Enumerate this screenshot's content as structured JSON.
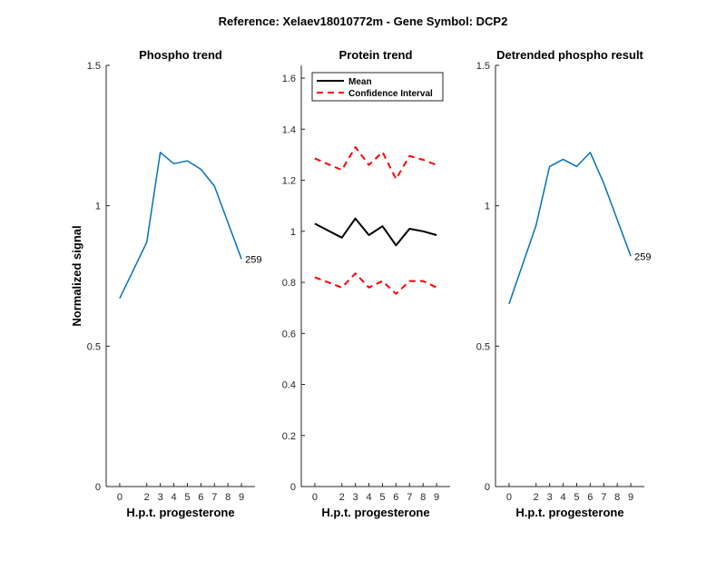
{
  "figure": {
    "suptitle": "Reference:  Xelaev18010772m - Gene Symbol:  DCP2"
  },
  "chart_data": [
    {
      "type": "line",
      "title": "Phospho trend",
      "xlabel": "H.p.t. progesterone",
      "ylabel": "Normalized signal",
      "ylim": [
        0,
        1.5
      ],
      "yticks": [
        0,
        0.5,
        1,
        1.5
      ],
      "ytick_labels": [
        "0",
        "0.5",
        "1",
        "1.5"
      ],
      "x": [
        0,
        2,
        3,
        4,
        5,
        6,
        7,
        8,
        9
      ],
      "xtick_labels": [
        "0",
        "2",
        "3",
        "4",
        "5",
        "6",
        "7",
        "8",
        "9"
      ],
      "series": [
        {
          "values": [
            0.67,
            0.87,
            1.19,
            1.15,
            1.16,
            1.13,
            1.07,
            0.94,
            0.81
          ],
          "color": "#0072BD",
          "end_label": "259"
        }
      ]
    },
    {
      "type": "line",
      "title": "Protein trend",
      "xlabel": "H.p.t. progesterone",
      "ylabel": "",
      "ylim": [
        0,
        1.65
      ],
      "yticks": [
        0,
        0.2,
        0.4,
        0.6,
        0.8,
        1,
        1.2,
        1.4,
        1.6
      ],
      "ytick_labels": [
        "0",
        "0.2",
        "0.4",
        "0.6",
        "0.8",
        "1",
        "1.2",
        "1.4",
        "1.6"
      ],
      "x": [
        0,
        2,
        3,
        4,
        5,
        6,
        7,
        8,
        9
      ],
      "xtick_labels": [
        "0",
        "2",
        "3",
        "4",
        "5",
        "6",
        "7",
        "8",
        "9"
      ],
      "legend": {
        "placement": "top-left",
        "entries": [
          "Mean",
          "Confidence Interval"
        ]
      },
      "series": [
        {
          "name": "Mean",
          "values": [
            1.03,
            0.975,
            1.05,
            0.985,
            1.02,
            0.945,
            1.01,
            1.0,
            0.985
          ],
          "color": "#000000",
          "style": "solid"
        },
        {
          "name": "Confidence Interval",
          "values": [
            1.285,
            1.24,
            1.33,
            1.26,
            1.31,
            1.205,
            1.295,
            1.28,
            1.26
          ],
          "color": "#ff0000",
          "style": "dashed"
        },
        {
          "name": "Confidence Interval",
          "values": [
            0.82,
            0.78,
            0.835,
            0.78,
            0.805,
            0.755,
            0.805,
            0.805,
            0.78
          ],
          "color": "#ff0000",
          "style": "dashed"
        }
      ]
    },
    {
      "type": "line",
      "title": "Detrended phospho result",
      "xlabel": "H.p.t. progesterone",
      "ylabel": "",
      "ylim": [
        0,
        1.5
      ],
      "yticks": [
        0,
        0.5,
        1,
        1.5
      ],
      "ytick_labels": [
        "0",
        "0.5",
        "1",
        "1.5"
      ],
      "x": [
        0,
        2,
        3,
        4,
        5,
        6,
        7,
        8,
        9
      ],
      "xtick_labels": [
        "0",
        "2",
        "3",
        "4",
        "5",
        "6",
        "7",
        "8",
        "9"
      ],
      "series": [
        {
          "values": [
            0.65,
            0.93,
            1.14,
            1.165,
            1.14,
            1.19,
            1.08,
            0.95,
            0.82
          ],
          "color": "#0072BD",
          "end_label": "259"
        }
      ]
    }
  ]
}
